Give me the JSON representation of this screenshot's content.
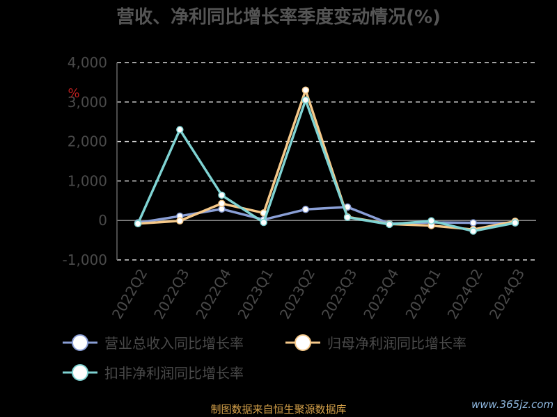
{
  "chart_data": {
    "type": "line",
    "title": "营收、净利同比增长率季度变动情况(%)",
    "categories": [
      "2022Q2",
      "2022Q3",
      "2022Q4",
      "2023Q1",
      "2023Q2",
      "2023Q3",
      "2023Q4",
      "2024Q1",
      "2024Q2",
      "2024Q3"
    ],
    "ylim": [
      -1000,
      4000
    ],
    "yticks": [
      "-1,000",
      "0",
      "1,000",
      "2,000",
      "3,000",
      "4,000"
    ],
    "ytick_values": [
      -1000,
      0,
      1000,
      2000,
      3000,
      4000
    ],
    "grid": true,
    "legend_position": "bottom",
    "series": [
      {
        "name": "营业总收入同比增长率",
        "color": "#8a9fd6",
        "values": [
          -60,
          110,
          290,
          20,
          280,
          340,
          -80,
          -50,
          -60,
          -60
        ]
      },
      {
        "name": "归母净利润同比增长率",
        "color": "#f6c98a",
        "values": [
          -80,
          -10,
          430,
          190,
          3300,
          90,
          -90,
          -130,
          -230,
          -20
        ]
      },
      {
        "name": "扣非净利润同比增长率",
        "color": "#7fd3d3",
        "values": [
          -80,
          2300,
          640,
          -50,
          3050,
          80,
          -100,
          -10,
          -270,
          -60
        ]
      }
    ]
  },
  "axis_marker": "%",
  "source_text": "制图数据来自恒生聚源数据库",
  "watermark": "www.365jz.com"
}
